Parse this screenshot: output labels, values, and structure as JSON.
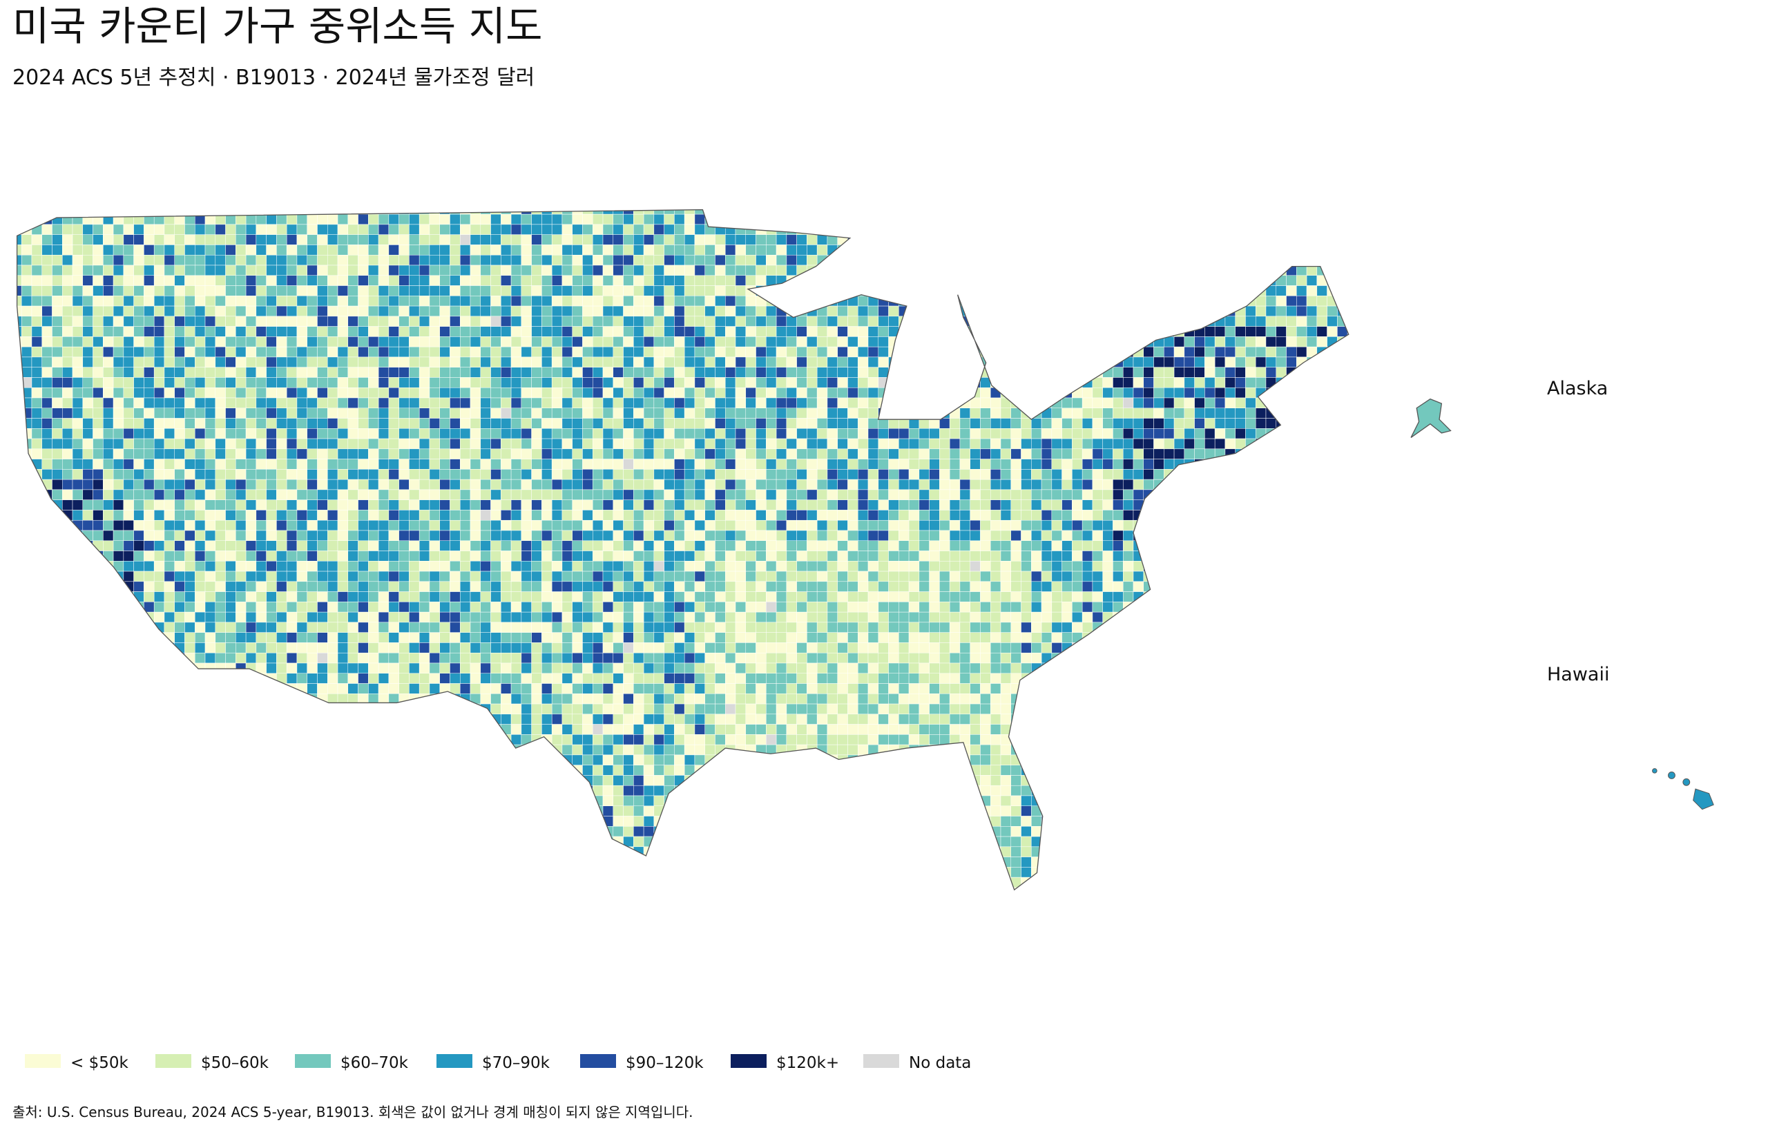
{
  "header": {
    "title": "미국 카운티 가구 중위소득 지도",
    "subtitle": "2024 ACS 5년 추정치 · B19013 · 2024년 물가조정 달러"
  },
  "map": {
    "labels": [
      "Alaska",
      "Hawaii"
    ]
  },
  "legend": {
    "items": [
      {
        "label": "< $50k",
        "color": "#fbfcd5"
      },
      {
        "label": "$50–60k",
        "color": "#d6efb3"
      },
      {
        "label": "$60–70k",
        "color": "#73c8bd"
      },
      {
        "label": "$70–90k",
        "color": "#2498c1"
      },
      {
        "label": "$90–120k",
        "color": "#234da0"
      },
      {
        "label": "$120k+",
        "color": "#0c1f5e"
      },
      {
        "label": "No data",
        "color": "#d9d9d9"
      }
    ]
  },
  "source": "출처: U.S. Census Bureau, 2024 ACS 5-year, B19013. 회색은 값이 없거나 경계 매칭이 되지 않은 지역입니다."
}
